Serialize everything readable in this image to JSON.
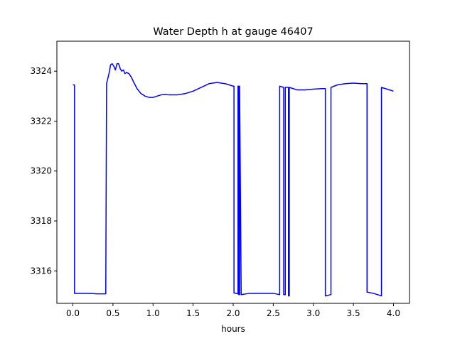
{
  "chart_data": {
    "type": "line",
    "title": "Water Depth h at gauge 46407",
    "xlabel": "hours",
    "ylabel": "",
    "xlim": [
      -0.2,
      4.2
    ],
    "ylim": [
      3314.7,
      3325.2
    ],
    "xticks": [
      0.0,
      0.5,
      1.0,
      1.5,
      2.0,
      2.5,
      3.0,
      3.5,
      4.0
    ],
    "xtick_labels": [
      "0.0",
      "0.5",
      "1.0",
      "1.5",
      "2.0",
      "2.5",
      "3.0",
      "3.5",
      "4.0"
    ],
    "yticks": [
      3316,
      3318,
      3320,
      3322,
      3324
    ],
    "ytick_labels": [
      "3316",
      "3318",
      "3320",
      "3322",
      "3324"
    ],
    "grid": false,
    "series": [
      {
        "color": "#0000ff",
        "x": [
          0.0,
          0.02,
          0.02,
          0.1,
          0.2,
          0.3,
          0.41,
          0.42,
          0.42,
          0.45,
          0.47,
          0.49,
          0.51,
          0.53,
          0.55,
          0.57,
          0.59,
          0.61,
          0.63,
          0.65,
          0.67,
          0.7,
          0.73,
          0.76,
          0.8,
          0.85,
          0.9,
          0.95,
          1.0,
          1.05,
          1.1,
          1.15,
          1.2,
          1.3,
          1.4,
          1.5,
          1.6,
          1.7,
          1.8,
          1.85,
          1.9,
          1.95,
          2.0,
          2.01,
          2.01,
          2.06,
          2.06,
          2.07,
          2.07,
          2.08,
          2.08,
          2.1,
          2.2,
          2.3,
          2.4,
          2.5,
          2.58,
          2.58,
          2.63,
          2.63,
          2.65,
          2.65,
          2.69,
          2.69,
          2.7,
          2.7,
          2.8,
          2.9,
          3.0,
          3.1,
          3.15,
          3.15,
          3.22,
          3.22,
          3.3,
          3.4,
          3.5,
          3.6,
          3.67,
          3.67,
          3.75,
          3.85,
          3.85,
          3.9,
          4.0
        ],
        "y": [
          3323.45,
          3323.45,
          3315.1,
          3315.1,
          3315.1,
          3315.08,
          3315.08,
          3323.45,
          3323.5,
          3323.9,
          3324.25,
          3324.3,
          3324.2,
          3324.05,
          3324.3,
          3324.3,
          3324.1,
          3324.0,
          3324.05,
          3323.9,
          3323.95,
          3323.9,
          3323.75,
          3323.55,
          3323.3,
          3323.1,
          3323.0,
          3322.95,
          3322.95,
          3323.0,
          3323.05,
          3323.07,
          3323.05,
          3323.05,
          3323.1,
          3323.2,
          3323.35,
          3323.5,
          3323.55,
          3323.52,
          3323.5,
          3323.45,
          3323.4,
          3323.4,
          3315.12,
          3315.08,
          3323.4,
          3323.4,
          3315.05,
          3315.05,
          3323.4,
          3315.05,
          3315.1,
          3315.1,
          3315.1,
          3315.1,
          3315.05,
          3323.4,
          3323.35,
          3315.05,
          3315.05,
          3323.35,
          3323.35,
          3315.0,
          3315.0,
          3323.35,
          3323.25,
          3323.25,
          3323.28,
          3323.3,
          3323.3,
          3315.0,
          3315.05,
          3323.35,
          3323.45,
          3323.5,
          3323.52,
          3323.5,
          3323.5,
          3315.15,
          3315.1,
          3315.0,
          3323.35,
          3323.3,
          3323.2
        ]
      }
    ]
  }
}
